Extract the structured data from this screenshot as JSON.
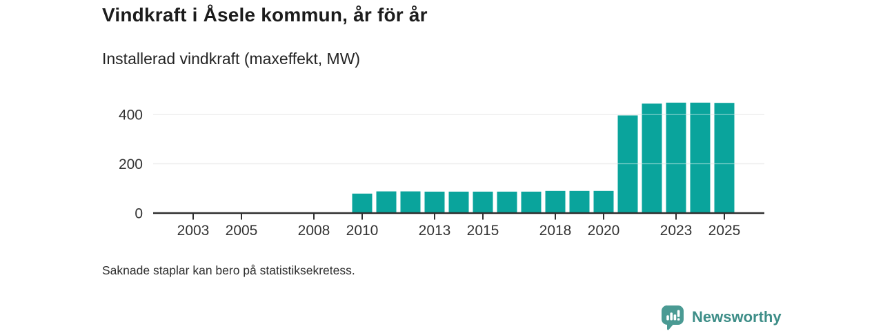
{
  "header": {
    "title": "Vindkraft i Åsele kommun, år för år",
    "subtitle": "Installerad vindkraft (maxeffekt, MW)"
  },
  "footnote": "Saknade staplar kan bero på statistiksekretess.",
  "branding": {
    "name": "Newsworthy",
    "logo_icon": "newsworthy-speech-bubble-bar-chart-icon",
    "text_color": "#3e8e88",
    "bubble_color": "#4a9a93"
  },
  "chart_data": {
    "type": "bar",
    "title": "Vindkraft i Åsele kommun, år för år",
    "subtitle": "Installerad vindkraft (maxeffekt, MW)",
    "ylabel": "Installerad vindkraft (maxeffekt, MW)",
    "xlabel": "",
    "unit": "MW",
    "x": [
      2002,
      2003,
      2004,
      2005,
      2006,
      2007,
      2008,
      2009,
      2010,
      2011,
      2012,
      2013,
      2014,
      2015,
      2016,
      2017,
      2018,
      2019,
      2020,
      2021,
      2022,
      2023,
      2024,
      2025
    ],
    "values": [
      null,
      null,
      null,
      null,
      null,
      null,
      null,
      null,
      79,
      88,
      88,
      87,
      87,
      87,
      87,
      87,
      90,
      90,
      90,
      396,
      444,
      448,
      448,
      447
    ],
    "missing_years_note": "Saknade staplar kan bero på statistiksekretess.",
    "bar_color": "#0aa49c",
    "axis_color": "#2f2f2f",
    "grid_color": "#d9d9d9",
    "tick_label_color": "#333333",
    "xticks": [
      2003,
      2005,
      2008,
      2010,
      2013,
      2015,
      2018,
      2020,
      2023,
      2025
    ],
    "yticks": [
      0,
      200,
      400
    ],
    "ylim": [
      0,
      460
    ],
    "grid": "horizontal",
    "legend": "none"
  }
}
